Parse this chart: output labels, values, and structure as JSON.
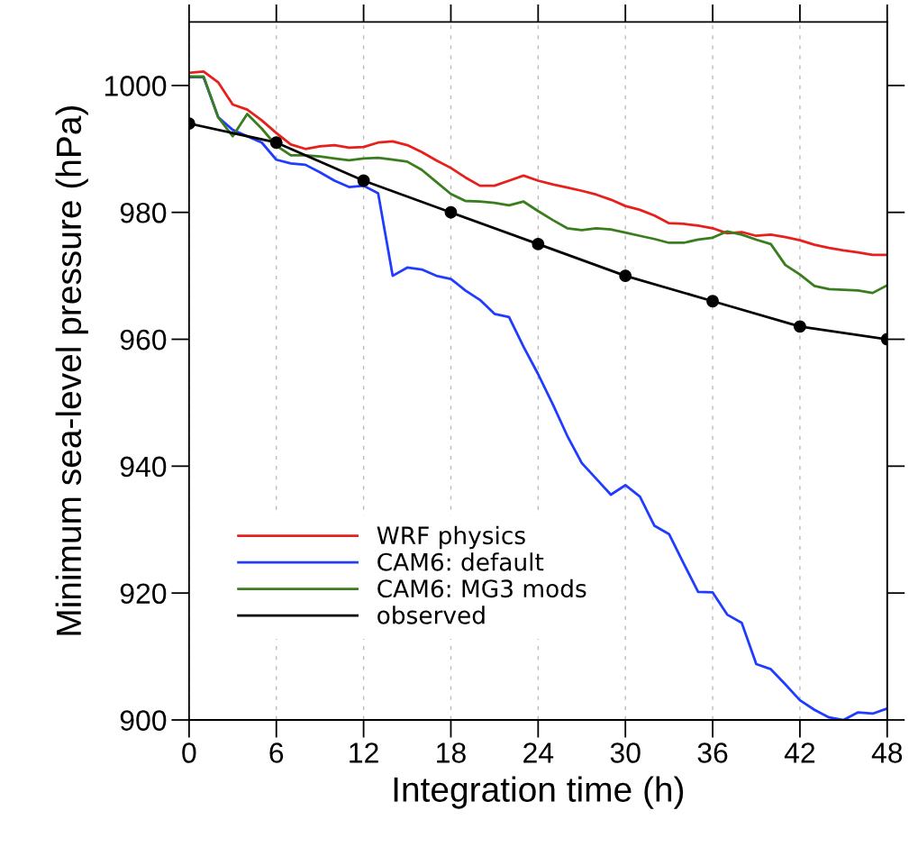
{
  "chart_data": {
    "type": "line",
    "xlabel": "Integration time (h)",
    "ylabel": "Minimum sea-level pressure (hPa)",
    "xlim": [
      0,
      48
    ],
    "xticks": [
      0,
      6,
      12,
      18,
      24,
      30,
      36,
      42,
      48
    ],
    "ylim": [
      900,
      1010
    ],
    "yticks": [
      900,
      920,
      940,
      960,
      980,
      1000
    ],
    "grid": "x",
    "legend": "bottom left",
    "x": [
      0,
      1,
      2,
      3,
      4,
      5,
      6,
      7,
      8,
      9,
      10,
      11,
      12,
      13,
      14,
      15,
      16,
      17,
      18,
      19,
      20,
      21,
      22,
      23,
      24,
      25,
      26,
      27,
      28,
      29,
      30,
      31,
      32,
      33,
      34,
      35,
      36,
      37,
      38,
      39,
      40,
      41,
      42,
      43,
      44,
      45,
      46,
      47,
      48
    ],
    "series": [
      {
        "name": "WRF physics",
        "color": "#e8201c",
        "marker": "none",
        "values": [
          1002,
          1002.2,
          1000.5,
          997,
          996.2,
          994.5,
          992.5,
          990.7,
          990,
          990.4,
          990.6,
          990.2,
          990.3,
          991,
          991.2,
          990.6,
          989.5,
          988.2,
          987,
          985.5,
          984.2,
          984.2,
          985,
          985.8,
          985,
          984.4,
          983.9,
          983.4,
          982.8,
          982,
          981,
          980.4,
          979.5,
          978.3,
          978.2,
          977.9,
          977.5,
          976.7,
          976.9,
          976.3,
          976.5,
          976.1,
          975.6,
          974.9,
          974.4,
          974,
          973.7,
          973.3,
          973.3
        ]
      },
      {
        "name": "CAM6: default",
        "color": "#1f3cff",
        "marker": "none",
        "values": [
          1001.3,
          1001.3,
          995,
          993,
          992,
          991,
          988.3,
          987.7,
          987.5,
          986.3,
          985,
          984,
          984.2,
          983,
          970,
          971.3,
          971,
          970,
          969.5,
          967.7,
          966.2,
          964,
          963.5,
          958.8,
          954.5,
          949.8,
          944.8,
          940.5,
          938,
          935.5,
          937,
          935.2,
          930.6,
          929.3,
          924.7,
          920.2,
          920.1,
          916.6,
          915.3,
          908.8,
          908,
          905.6,
          903.1,
          901.6,
          900.4,
          900,
          901.2,
          901,
          901.8
        ]
      },
      {
        "name": "CAM6: MG3 mods",
        "color": "#3a7d1e",
        "marker": "none",
        "values": [
          1001.4,
          1001.4,
          995,
          992,
          995.5,
          993.2,
          990.5,
          989,
          989,
          988.8,
          988.5,
          988.2,
          988.5,
          988.6,
          988.3,
          988,
          986.7,
          984.8,
          982.9,
          981.8,
          981.7,
          981.5,
          981.1,
          981.7,
          980.2,
          978.8,
          977.5,
          977.2,
          977.5,
          977.3,
          976.8,
          976.3,
          975.8,
          975.2,
          975.2,
          975.7,
          976,
          977,
          976.5,
          975.7,
          975,
          971.7,
          970.2,
          968.4,
          967.9,
          967.8,
          967.7,
          967.3,
          968.5
        ]
      },
      {
        "name": "observed",
        "color": "#000000",
        "marker": "circle",
        "x": [
          0,
          6,
          12,
          18,
          24,
          30,
          36,
          42,
          48
        ],
        "values": [
          994,
          991,
          985,
          980,
          975,
          970,
          966,
          962,
          960
        ]
      }
    ]
  }
}
